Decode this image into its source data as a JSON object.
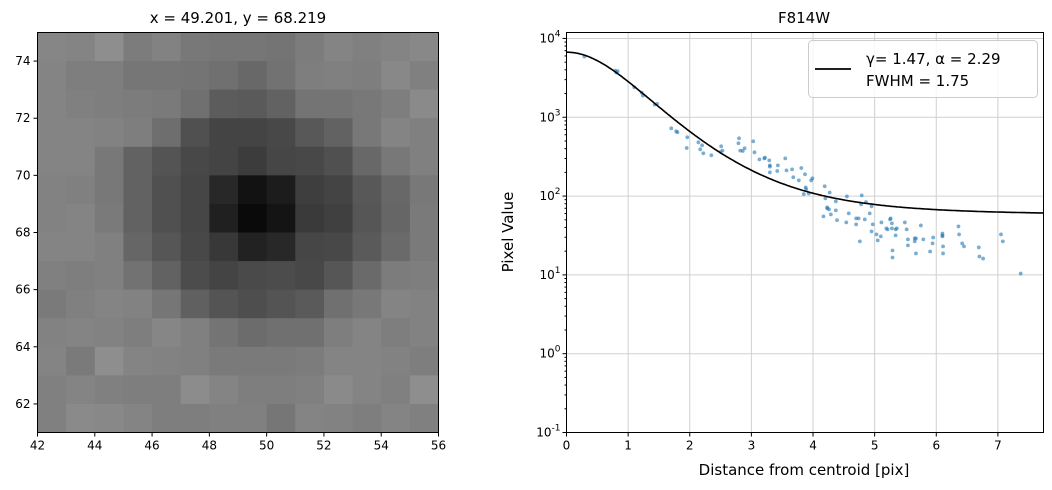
{
  "chart_data": [
    {
      "type": "heatmap",
      "title": "x = 49.201, y = 68.219",
      "xlim": [
        42,
        56
      ],
      "ylim": [
        61,
        75
      ],
      "xticks": [
        42,
        44,
        46,
        48,
        50,
        52,
        54,
        56
      ],
      "yticks": [
        62,
        64,
        66,
        68,
        70,
        72,
        74
      ],
      "colormap": "gray_r",
      "values_note_rows": "top row first (y=74.5) to bottom (y=61.5); relative intensity 0-255, darker = higher",
      "values": [
        [
          121,
          123,
          113,
          131,
          125,
          135,
          137,
          137,
          139,
          131,
          123,
          127,
          123,
          119
        ],
        [
          123,
          129,
          129,
          137,
          137,
          139,
          143,
          151,
          141,
          129,
          127,
          129,
          119,
          127
        ],
        [
          123,
          127,
          129,
          131,
          133,
          143,
          163,
          165,
          157,
          139,
          139,
          135,
          129,
          117
        ],
        [
          123,
          123,
          125,
          129,
          145,
          175,
          187,
          187,
          183,
          167,
          157,
          135,
          123,
          127
        ],
        [
          123,
          123,
          135,
          157,
          171,
          183,
          187,
          195,
          185,
          183,
          175,
          151,
          135,
          127
        ],
        [
          125,
          127,
          135,
          157,
          175,
          185,
          215,
          237,
          227,
          193,
          187,
          167,
          151,
          135
        ],
        [
          125,
          123,
          133,
          157,
          175,
          185,
          223,
          245,
          235,
          197,
          191,
          169,
          153,
          133
        ],
        [
          123,
          123,
          127,
          153,
          169,
          183,
          199,
          221,
          215,
          185,
          183,
          165,
          149,
          133
        ],
        [
          127,
          129,
          127,
          141,
          157,
          179,
          187,
          181,
          179,
          183,
          169,
          149,
          131,
          129
        ],
        [
          133,
          127,
          123,
          125,
          137,
          159,
          171,
          177,
          171,
          165,
          143,
          135,
          123,
          125
        ],
        [
          125,
          123,
          125,
          129,
          121,
          127,
          139,
          147,
          143,
          143,
          129,
          123,
          129,
          125
        ],
        [
          123,
          133,
          113,
          123,
          125,
          127,
          133,
          133,
          133,
          131,
          123,
          123,
          125,
          129
        ],
        [
          127,
          123,
          127,
          129,
          129,
          115,
          123,
          129,
          129,
          127,
          117,
          123,
          127,
          113
        ],
        [
          127,
          117,
          119,
          123,
          129,
          129,
          127,
          127,
          137,
          123,
          125,
          129,
          123,
          127
        ]
      ]
    },
    {
      "type": "scatter",
      "title": "F814W",
      "xlabel": "Distance from centroid [pix]",
      "ylabel": "Pixel Value",
      "xlim": [
        0,
        7.74
      ],
      "ylim": [
        0.1,
        11900
      ],
      "yscale": "log",
      "xticks": [
        0,
        1,
        2,
        3,
        4,
        5,
        6,
        7
      ],
      "yticks": [
        "10^-1",
        "10^0",
        "10^1",
        "10^2",
        "10^3",
        "10^4"
      ],
      "grid": true,
      "legend_placement": "top-right",
      "legend": [
        "γ= 1.47, α = 2.29",
        "FWHM = 1.75"
      ],
      "point_color": "#1f77b4",
      "line_color": "#000000",
      "fit": {
        "model": "moffat",
        "gamma": 1.47,
        "alpha": 2.29,
        "amplitude": 6640,
        "background": 58
      },
      "points": [
        [
          0.29,
          5890
        ],
        [
          0.79,
          3910
        ],
        [
          0.83,
          3840
        ],
        [
          0.81,
          3690
        ],
        [
          1.1,
          2400
        ],
        [
          1.22,
          2055
        ],
        [
          1.24,
          1880
        ],
        [
          1.43,
          1446
        ],
        [
          1.47,
          1476
        ],
        [
          1.7,
          724
        ],
        [
          1.78,
          663
        ],
        [
          1.8,
          645
        ],
        [
          1.96,
          557
        ],
        [
          1.95,
          407
        ],
        [
          2.14,
          481
        ],
        [
          2.2,
          441
        ],
        [
          2.17,
          392
        ],
        [
          2.22,
          349
        ],
        [
          2.35,
          329
        ],
        [
          2.51,
          428
        ],
        [
          2.53,
          377
        ],
        [
          2.5,
          362
        ],
        [
          2.8,
          541
        ],
        [
          2.79,
          468
        ],
        [
          2.82,
          377
        ],
        [
          2.86,
          373
        ],
        [
          2.89,
          404
        ],
        [
          3.03,
          495
        ],
        [
          3.05,
          359
        ],
        [
          3.13,
          292
        ],
        [
          3.21,
          301
        ],
        [
          3.22,
          307
        ],
        [
          3.29,
          284
        ],
        [
          3.3,
          245
        ],
        [
          3.3,
          236
        ],
        [
          3.3,
          200
        ],
        [
          3.43,
          245
        ],
        [
          3.42,
          208
        ],
        [
          3.55,
          301
        ],
        [
          3.57,
          212
        ],
        [
          3.66,
          218
        ],
        [
          3.68,
          173
        ],
        [
          3.77,
          158
        ],
        [
          3.81,
          227
        ],
        [
          3.87,
          189
        ],
        [
          3.97,
          158
        ],
        [
          3.99,
          168
        ],
        [
          3.88,
          129
        ],
        [
          3.89,
          122
        ],
        [
          3.85,
          106
        ],
        [
          3.93,
          108
        ],
        [
          4.19,
          133
        ],
        [
          4.27,
          111
        ],
        [
          4.2,
          93.5
        ],
        [
          4.23,
          71.8
        ],
        [
          4.26,
          67.7
        ],
        [
          4.23,
          69.8
        ],
        [
          4.29,
          58.5
        ],
        [
          4.17,
          55.2
        ],
        [
          4.37,
          85.7
        ],
        [
          4.37,
          65.8
        ],
        [
          4.39,
          49.5
        ],
        [
          4.55,
          99
        ],
        [
          4.58,
          60.3
        ],
        [
          4.54,
          46.3
        ],
        [
          4.7,
          52.1
        ],
        [
          4.74,
          52.1
        ],
        [
          4.7,
          43.7
        ],
        [
          4.76,
          26.6
        ],
        [
          4.79,
          102
        ],
        [
          4.78,
          78.5
        ],
        [
          4.86,
          83.9
        ],
        [
          4.84,
          50.6
        ],
        [
          4.92,
          60.3
        ],
        [
          4.95,
          74
        ],
        [
          4.97,
          43.7
        ],
        [
          4.95,
          35.6
        ],
        [
          5.03,
          32.6
        ],
        [
          5.05,
          27.4
        ],
        [
          5.1,
          30.8
        ],
        [
          5.11,
          46.3
        ],
        [
          5.19,
          38.9
        ],
        [
          5.21,
          37.8
        ],
        [
          5.25,
          50.6
        ],
        [
          5.26,
          52.1
        ],
        [
          5.28,
          45
        ],
        [
          5.28,
          38.9
        ],
        [
          5.34,
          37.8
        ],
        [
          5.36,
          38.9
        ],
        [
          5.34,
          31.7
        ],
        [
          5.29,
          20.4
        ],
        [
          5.29,
          16.6
        ],
        [
          5.49,
          46.3
        ],
        [
          5.52,
          37.8
        ],
        [
          5.54,
          28.2
        ],
        [
          5.54,
          23.7
        ],
        [
          5.65,
          29
        ],
        [
          5.67,
          29
        ],
        [
          5.65,
          26.6
        ],
        [
          5.67,
          18.7
        ],
        [
          5.75,
          42.4
        ],
        [
          5.79,
          28.2
        ],
        [
          5.9,
          19.8
        ],
        [
          5.94,
          25.1
        ],
        [
          5.95,
          29.8
        ],
        [
          6.1,
          33.5
        ],
        [
          6.1,
          31.7
        ],
        [
          6.1,
          30.8
        ],
        [
          6.11,
          23
        ],
        [
          6.11,
          18.7
        ],
        [
          6.36,
          41.2
        ],
        [
          6.37,
          32.6
        ],
        [
          6.42,
          25.1
        ],
        [
          6.45,
          23
        ],
        [
          6.69,
          22.3
        ],
        [
          6.7,
          17.1
        ],
        [
          6.76,
          16.1
        ],
        [
          7.05,
          32.6
        ],
        [
          7.08,
          26.6
        ],
        [
          7.37,
          10.4
        ]
      ]
    }
  ]
}
